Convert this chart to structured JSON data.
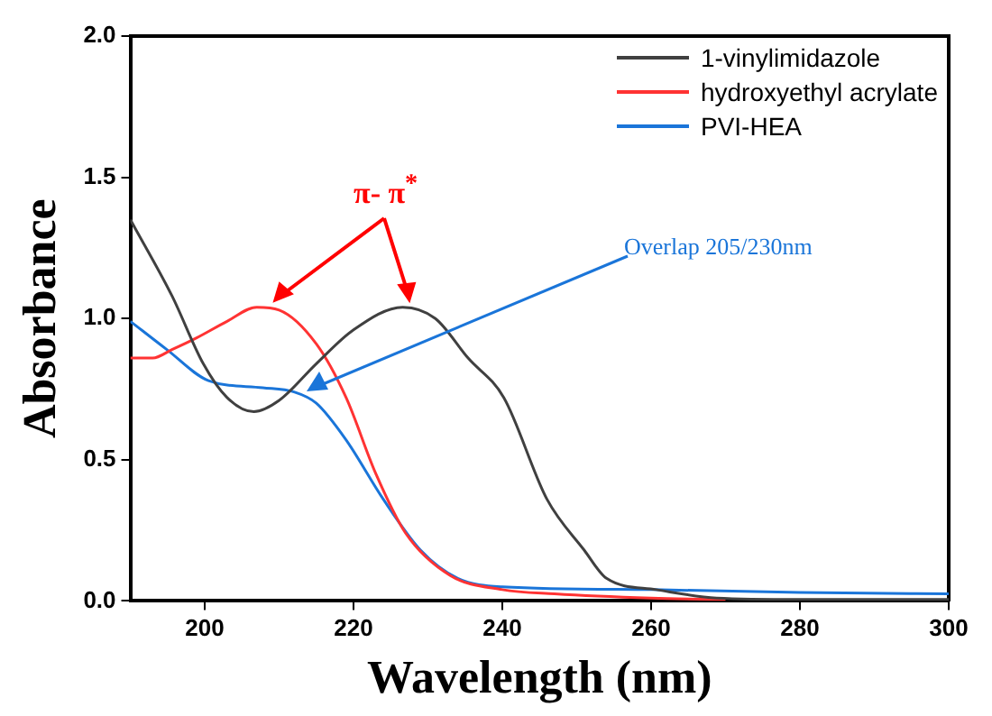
{
  "chart_data": {
    "type": "line",
    "xlabel": "Wavelength (nm)",
    "ylabel": "Absorbance",
    "xlim": [
      190,
      300
    ],
    "xticks": [
      200,
      220,
      240,
      260,
      280,
      300
    ],
    "ylim": [
      0,
      2
    ],
    "yticks": [
      {
        "value": 0,
        "label": "0.0"
      },
      {
        "value": 0.5,
        "label": "0.5"
      },
      {
        "value": 1,
        "label": "1.0"
      },
      {
        "value": 1.5,
        "label": "1.5"
      },
      {
        "value": 2,
        "label": "2.0"
      }
    ],
    "legend": "top right",
    "grid": false,
    "marker": "none",
    "line_style": "solid",
    "annotations": [
      "π- π$^{*}$",
      "Overlap 205/230nm"
    ],
    "series": [
      {
        "name": "1-vinylimidazole",
        "color": "#404040",
        "x": [
          190,
          195.6,
          199.8,
          203,
          206.6,
          210,
          215,
          220,
          226.6,
          231,
          235.4,
          240.2,
          246,
          251,
          254,
          260.7,
          268.8,
          280,
          300
        ],
        "values": [
          1.35,
          1.08,
          0.84,
          0.72,
          0.67,
          0.71,
          0.84,
          0.96,
          1.04,
          1.0,
          0.86,
          0.72,
          0.36,
          0.18,
          0.08,
          0.04,
          0.01,
          0.005,
          0.005
        ]
      },
      {
        "name": "hydroxyethyl acrylate",
        "color": "#ff3333",
        "x": [
          190,
          193,
          195.6,
          198.8,
          203,
          207,
          210,
          215,
          219,
          223,
          227,
          233,
          240,
          247,
          260,
          270
        ],
        "values": [
          0.86,
          0.86,
          0.89,
          0.93,
          0.99,
          1.04,
          1.03,
          0.91,
          0.72,
          0.45,
          0.24,
          0.09,
          0.04,
          0.025,
          0.01,
          0.005
        ]
      },
      {
        "name": "PVI-HEA",
        "color": "#1a75d9",
        "x": [
          190,
          194.9,
          200.5,
          207.8,
          212,
          215,
          219,
          224,
          229,
          234,
          240,
          260,
          280,
          300
        ],
        "values": [
          0.99,
          0.89,
          0.78,
          0.755,
          0.74,
          0.7,
          0.57,
          0.36,
          0.18,
          0.08,
          0.05,
          0.04,
          0.03,
          0.025
        ]
      }
    ]
  }
}
